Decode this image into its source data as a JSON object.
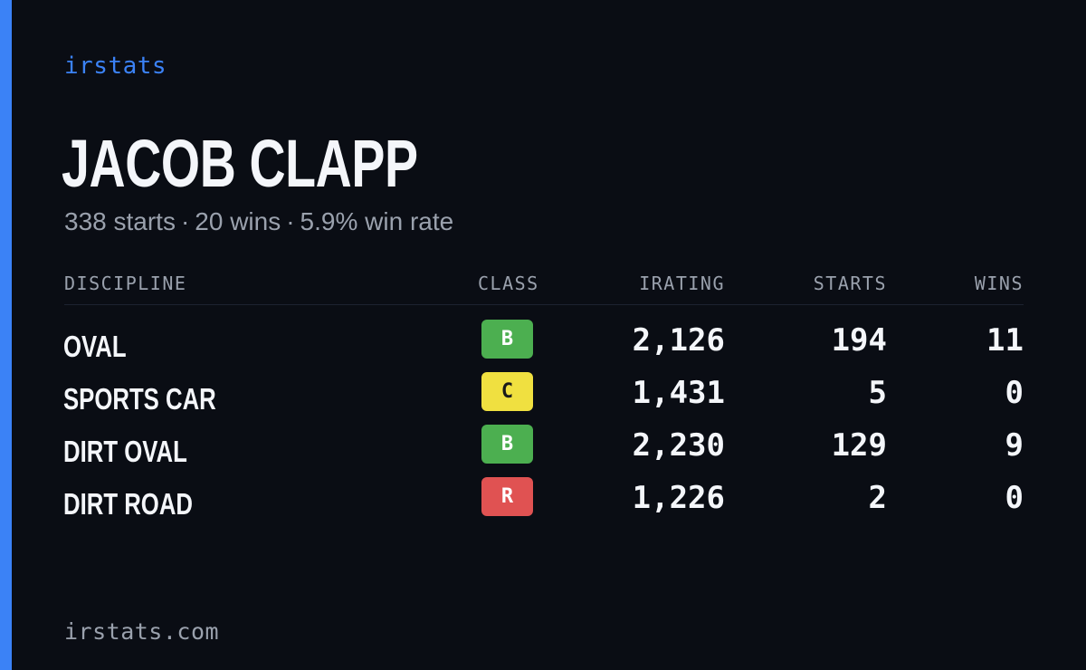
{
  "colors": {
    "background": "#0a0d14",
    "accent": "#3b82f6",
    "text": "#f4f6fa",
    "muted": "#9aa1ad",
    "class_b": "#4caf50",
    "class_c": "#f0e040",
    "class_r": "#e05252"
  },
  "brand": "irstats",
  "driver": {
    "name": "JACOB CLAPP",
    "starts_text": "338 starts",
    "wins_text": "20 wins",
    "win_rate_text": "5.9% win rate",
    "separator": "·"
  },
  "table": {
    "headers": {
      "discipline": "DISCIPLINE",
      "class": "CLASS",
      "irating": "IRATING",
      "starts": "STARTS",
      "wins": "WINS"
    },
    "rows": [
      {
        "discipline": "OVAL",
        "class": "B",
        "class_color": "#4caf50",
        "class_text_color": "#ffffff",
        "irating": "2,126",
        "starts": "194",
        "wins": "11"
      },
      {
        "discipline": "SPORTS CAR",
        "class": "C",
        "class_color": "#f0e040",
        "class_text_color": "#1a1a1a",
        "irating": "1,431",
        "starts": "5",
        "wins": "0"
      },
      {
        "discipline": "DIRT OVAL",
        "class": "B",
        "class_color": "#4caf50",
        "class_text_color": "#ffffff",
        "irating": "2,230",
        "starts": "129",
        "wins": "9"
      },
      {
        "discipline": "DIRT ROAD",
        "class": "R",
        "class_color": "#e05252",
        "class_text_color": "#ffffff",
        "irating": "1,226",
        "starts": "2",
        "wins": "0"
      }
    ]
  },
  "footer": "irstats.com"
}
